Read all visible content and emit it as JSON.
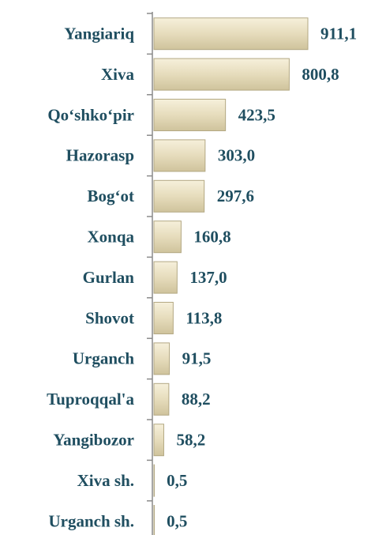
{
  "chart_data": {
    "type": "bar",
    "orientation": "horizontal",
    "categories": [
      "Yangiariq",
      "Xiva",
      "Qo‘shko‘pir",
      "Hazorasp",
      "Bog‘ot",
      "Xonqa",
      "Gurlan",
      "Shovot",
      "Urganch",
      "Tuproqqal'a",
      "Yangibozor",
      "Xiva sh.",
      "Urganch sh."
    ],
    "values": [
      911.1,
      800.8,
      423.5,
      303.0,
      297.6,
      160.8,
      137.0,
      113.8,
      91.5,
      88.2,
      58.2,
      0.5,
      0.5
    ],
    "value_labels": [
      "911,1",
      "800,8",
      "423,5",
      "303,0",
      "297,6",
      "160,8",
      "137,0",
      "113,8",
      "91,5",
      "88,2",
      "58,2",
      "0,5",
      "0,5"
    ],
    "color": "#e6dcbc"
  }
}
